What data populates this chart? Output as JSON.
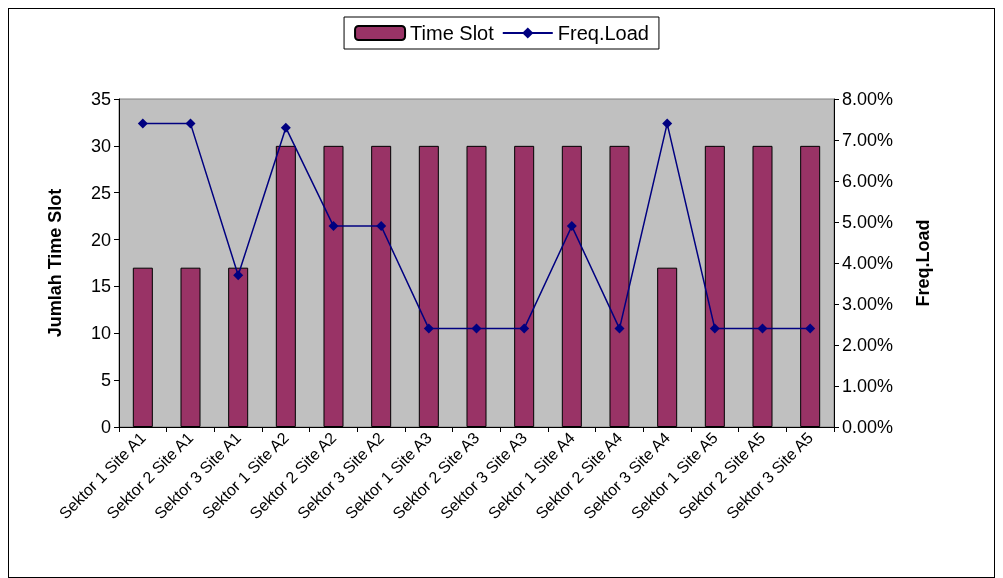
{
  "chart_data": {
    "type": "bar",
    "ylabel": "Jumlah Time Slot",
    "y2label": "Freq.Load",
    "categories": [
      "Sektor 1 Site A1",
      "Sektor 2 Site A1",
      "Sektor 3 Site A1",
      "Sektor 1 Site A2",
      "Sektor 2 Site A2",
      "Sektor 3 Site A2",
      "Sektor 1 Site A3",
      "Sektor 2 Site A3",
      "Sektor 3 Site A3",
      "Sektor 1 Site A4",
      "Sektor 2 Site A4",
      "Sektor 3 Site A4",
      "Sektor 1 Site A5",
      "Sektor 2 Site A5",
      "Sektor 3 Site A5"
    ],
    "series": [
      {
        "name": "Time Slot",
        "color": "#993366",
        "values": [
          17,
          17,
          17,
          30,
          30,
          30,
          30,
          30,
          30,
          30,
          30,
          17,
          30,
          30,
          30
        ]
      },
      {
        "name": "Freq.Load",
        "type": "line",
        "axis": "y2",
        "color": "#000080",
        "marker": "diamond",
        "values": [
          7.4,
          7.4,
          3.7,
          7.3,
          4.9,
          4.9,
          2.4,
          2.4,
          2.4,
          4.9,
          2.4,
          7.4,
          2.4,
          2.4,
          2.4
        ]
      }
    ],
    "ylim": [
      0,
      35
    ],
    "yticks": [
      0,
      5,
      10,
      15,
      20,
      25,
      30,
      35
    ],
    "y2lim": [
      0,
      8
    ],
    "y2ticks": [
      {
        "value": 0,
        "label": "0.00%"
      },
      {
        "value": 1,
        "label": "1.00%"
      },
      {
        "value": 2,
        "label": "2.00%"
      },
      {
        "value": 3,
        "label": "3.00%"
      },
      {
        "value": 4,
        "label": "4.00%"
      },
      {
        "value": 5,
        "label": "5.00%"
      },
      {
        "value": 6,
        "label": "6.00%"
      },
      {
        "value": 7,
        "label": "7.00%"
      },
      {
        "value": 8,
        "label": "8.00%"
      }
    ],
    "grid": false,
    "legend": "top"
  }
}
